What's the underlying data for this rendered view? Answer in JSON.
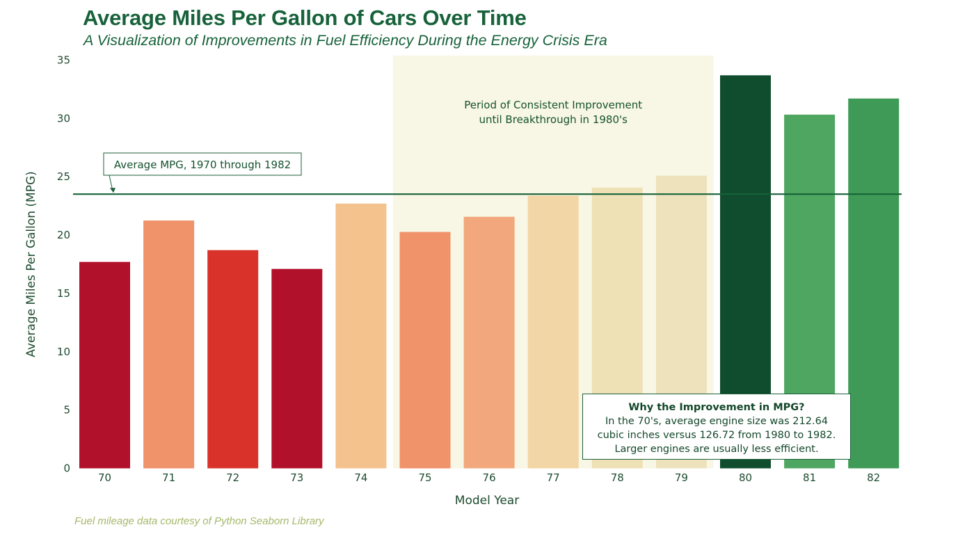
{
  "title": "Average Miles Per Gallon of Cars Over Time",
  "subtitle": "A Visualization of Improvements in Fuel Efficiency During the Energy Crisis Era",
  "footer": "Fuel mileage data courtesy of Python Seaborn Library",
  "chart_data": {
    "type": "bar",
    "xlabel": "Model Year",
    "ylabel": "Average Miles Per Gallon (MPG)",
    "ylim": [
      0,
      35
    ],
    "yticks": [
      0,
      5,
      10,
      15,
      20,
      25,
      30,
      35
    ],
    "grid": false,
    "categories": [
      "70",
      "71",
      "72",
      "73",
      "74",
      "75",
      "76",
      "77",
      "78",
      "79",
      "80",
      "81",
      "82"
    ],
    "values": [
      17.7,
      21.25,
      18.71,
      17.1,
      22.7,
      20.27,
      21.57,
      23.38,
      24.06,
      25.09,
      33.7,
      30.33,
      31.71
    ],
    "bar_colors": [
      "#b1112a",
      "#f0926a",
      "#d9322b",
      "#b1112a",
      "#f4c28c",
      "#f0926a",
      "#f3a77c",
      "#f2d6a5",
      "#efe1b6",
      "#ede2bc",
      "#0f4d2e",
      "#4ea661",
      "#3e9a56"
    ],
    "reference_line": {
      "value": 23.51,
      "color": "#17623a",
      "label": "Average MPG, 1970 through 1982"
    },
    "highlight_region": {
      "from_category": "75",
      "to_category": "79",
      "color": "#f8f6e4",
      "label_lines": [
        "Period of Consistent Improvement",
        "until Breakthrough in 1980's"
      ]
    },
    "note": {
      "heading": "Why the Improvement in MPG?",
      "lines": [
        "In the 70's, average engine size was 212.64",
        "cubic inches versus 126.72 from 1980 to 1982.",
        "Larger engines are usually less efficient."
      ]
    }
  }
}
